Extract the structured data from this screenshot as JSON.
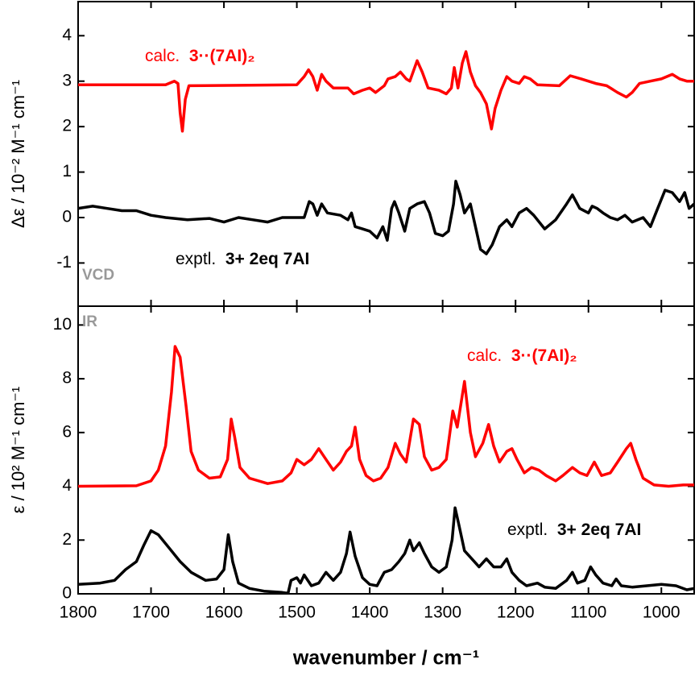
{
  "chart_data": [
    {
      "type": "line",
      "y_label": "Δε / 10⁻² M⁻¹ cm⁻¹",
      "xlim": [
        1800,
        955
      ],
      "ylim": [
        -1.95,
        4.75
      ],
      "yticks": [
        -1,
        0,
        1,
        2,
        3,
        4
      ],
      "annotations": [
        {
          "text": "calc.",
          "bold_text": "3··(7AI)₂",
          "color": "#ff0000"
        },
        {
          "text": "exptl.",
          "bold_text": "3+ 2eq 7AI",
          "color": "#000000"
        },
        {
          "bold_text": "VCD",
          "color": "#999999"
        }
      ],
      "series": [
        {
          "name": "calc. VCD",
          "color": "#ff0000",
          "x": [
            1800,
            1680,
            1668,
            1663,
            1660,
            1657,
            1653,
            1648,
            1500,
            1490,
            1484,
            1478,
            1472,
            1466,
            1460,
            1450,
            1430,
            1422,
            1410,
            1400,
            1392,
            1380,
            1375,
            1365,
            1358,
            1350,
            1345,
            1335,
            1328,
            1320,
            1305,
            1295,
            1288,
            1284,
            1279,
            1273,
            1268,
            1262,
            1255,
            1248,
            1240,
            1233,
            1228,
            1220,
            1212,
            1205,
            1195,
            1188,
            1180,
            1170,
            1140,
            1125,
            1110,
            1090,
            1075,
            1060,
            1048,
            1040,
            1030,
            1015,
            1000,
            985,
            975,
            965,
            955
          ],
          "values": [
            2.92,
            2.92,
            3.0,
            2.95,
            2.3,
            1.9,
            2.6,
            2.9,
            2.92,
            3.1,
            3.25,
            3.1,
            2.8,
            3.15,
            3.0,
            2.85,
            2.85,
            2.72,
            2.8,
            2.85,
            2.75,
            2.9,
            3.05,
            3.1,
            3.2,
            3.05,
            3.0,
            3.45,
            3.2,
            2.85,
            2.8,
            2.72,
            2.85,
            3.3,
            2.85,
            3.4,
            3.65,
            3.2,
            2.9,
            2.75,
            2.5,
            1.95,
            2.4,
            2.8,
            3.1,
            3.0,
            2.95,
            3.1,
            3.05,
            2.92,
            2.9,
            3.12,
            3.05,
            2.95,
            2.9,
            2.75,
            2.65,
            2.75,
            2.95,
            3.0,
            3.05,
            3.15,
            3.05,
            3.0,
            3.0
          ]
        },
        {
          "name": "exptl. VCD",
          "color": "#000000",
          "x": [
            1800,
            1780,
            1760,
            1740,
            1720,
            1700,
            1680,
            1650,
            1620,
            1600,
            1580,
            1560,
            1540,
            1520,
            1500,
            1490,
            1483,
            1478,
            1472,
            1466,
            1458,
            1440,
            1430,
            1425,
            1420,
            1410,
            1400,
            1390,
            1382,
            1376,
            1370,
            1366,
            1360,
            1352,
            1345,
            1335,
            1325,
            1318,
            1310,
            1300,
            1292,
            1285,
            1282,
            1276,
            1270,
            1262,
            1255,
            1248,
            1240,
            1232,
            1222,
            1212,
            1205,
            1195,
            1185,
            1175,
            1160,
            1145,
            1130,
            1122,
            1112,
            1100,
            1095,
            1088,
            1080,
            1070,
            1060,
            1050,
            1040,
            1025,
            1015,
            1005,
            995,
            985,
            975,
            968,
            962,
            955
          ],
          "values": [
            0.2,
            0.25,
            0.2,
            0.15,
            0.15,
            0.05,
            0.0,
            -0.05,
            -0.02,
            -0.1,
            0.0,
            -0.05,
            -0.1,
            0.0,
            0.0,
            0.0,
            0.35,
            0.3,
            0.05,
            0.3,
            0.1,
            0.05,
            -0.05,
            0.1,
            -0.2,
            -0.25,
            -0.3,
            -0.45,
            -0.2,
            -0.5,
            0.2,
            0.35,
            0.1,
            -0.3,
            0.2,
            0.3,
            0.35,
            0.1,
            -0.35,
            -0.4,
            -0.3,
            0.3,
            0.8,
            0.5,
            0.1,
            0.3,
            -0.2,
            -0.7,
            -0.8,
            -0.6,
            -0.2,
            -0.05,
            -0.2,
            0.1,
            0.2,
            0.05,
            -0.25,
            -0.05,
            0.3,
            0.5,
            0.2,
            0.1,
            0.25,
            0.2,
            0.1,
            0.0,
            -0.05,
            0.05,
            -0.1,
            0.0,
            -0.2,
            0.2,
            0.6,
            0.55,
            0.35,
            0.55,
            0.2,
            0.3
          ]
        }
      ]
    },
    {
      "type": "line",
      "y_label": "ε / 10² M⁻¹ cm⁻¹",
      "x_label": "wavenumber / cm⁻¹",
      "xlim": [
        1800,
        955
      ],
      "xticks": [
        1800,
        1700,
        1600,
        1500,
        1400,
        1300,
        1200,
        1100,
        1000
      ],
      "ylim": [
        0,
        10.7
      ],
      "yticks": [
        0,
        2,
        4,
        6,
        8,
        10
      ],
      "annotations": [
        {
          "bold_text": "IR",
          "color": "#999999"
        },
        {
          "text": "calc.",
          "bold_text": "3··(7AI)₂",
          "color": "#ff0000"
        },
        {
          "text": "exptl.",
          "bold_text": "3+ 2eq 7AI",
          "color": "#000000"
        }
      ],
      "series": [
        {
          "name": "calc. IR",
          "color": "#ff0000",
          "x": [
            1800,
            1720,
            1700,
            1690,
            1680,
            1672,
            1667,
            1660,
            1652,
            1645,
            1635,
            1620,
            1605,
            1595,
            1590,
            1585,
            1578,
            1565,
            1540,
            1520,
            1508,
            1500,
            1490,
            1480,
            1470,
            1460,
            1450,
            1440,
            1432,
            1425,
            1420,
            1414,
            1405,
            1395,
            1385,
            1375,
            1365,
            1358,
            1350,
            1340,
            1332,
            1325,
            1315,
            1305,
            1295,
            1286,
            1280,
            1270,
            1262,
            1255,
            1245,
            1237,
            1230,
            1222,
            1212,
            1205,
            1198,
            1188,
            1178,
            1168,
            1158,
            1145,
            1135,
            1122,
            1112,
            1102,
            1092,
            1082,
            1070,
            1060,
            1048,
            1042,
            1035,
            1025,
            1010,
            990,
            970,
            955
          ],
          "values": [
            4.0,
            4.02,
            4.2,
            4.6,
            5.5,
            7.5,
            9.2,
            8.8,
            7.0,
            5.3,
            4.6,
            4.3,
            4.35,
            5.0,
            6.5,
            5.8,
            4.7,
            4.3,
            4.1,
            4.2,
            4.5,
            5.0,
            4.8,
            5.0,
            5.4,
            5.0,
            4.6,
            4.9,
            5.3,
            5.5,
            6.2,
            5.0,
            4.4,
            4.2,
            4.3,
            4.7,
            5.6,
            5.2,
            4.9,
            6.5,
            6.3,
            5.1,
            4.6,
            4.7,
            5.0,
            6.8,
            6.2,
            7.9,
            6.0,
            5.1,
            5.6,
            6.3,
            5.5,
            4.9,
            5.3,
            5.4,
            5.0,
            4.5,
            4.7,
            4.6,
            4.4,
            4.2,
            4.4,
            4.7,
            4.5,
            4.4,
            4.9,
            4.4,
            4.5,
            4.9,
            5.4,
            5.6,
            5.0,
            4.3,
            4.05,
            4.0,
            4.05,
            4.05
          ]
        },
        {
          "name": "exptl. IR",
          "color": "#000000",
          "x": [
            1800,
            1770,
            1750,
            1735,
            1720,
            1710,
            1700,
            1690,
            1675,
            1660,
            1645,
            1625,
            1610,
            1600,
            1594,
            1588,
            1580,
            1565,
            1545,
            1520,
            1512,
            1508,
            1500,
            1495,
            1490,
            1480,
            1470,
            1460,
            1450,
            1440,
            1432,
            1427,
            1420,
            1410,
            1400,
            1390,
            1380,
            1370,
            1360,
            1352,
            1345,
            1340,
            1332,
            1325,
            1315,
            1305,
            1295,
            1287,
            1283,
            1278,
            1270,
            1260,
            1250,
            1240,
            1230,
            1220,
            1212,
            1205,
            1195,
            1185,
            1170,
            1160,
            1145,
            1130,
            1122,
            1115,
            1105,
            1097,
            1090,
            1080,
            1068,
            1062,
            1055,
            1040,
            1020,
            1000,
            980,
            965,
            955
          ],
          "values": [
            0.35,
            0.4,
            0.5,
            0.9,
            1.2,
            1.8,
            2.35,
            2.2,
            1.7,
            1.2,
            0.8,
            0.5,
            0.55,
            0.9,
            2.2,
            1.2,
            0.4,
            0.2,
            0.1,
            0.05,
            0.02,
            0.5,
            0.6,
            0.4,
            0.7,
            0.3,
            0.4,
            0.8,
            0.5,
            0.8,
            1.5,
            2.3,
            1.4,
            0.6,
            0.35,
            0.3,
            0.8,
            0.9,
            1.2,
            1.5,
            2.0,
            1.6,
            1.9,
            1.5,
            1.0,
            0.8,
            1.0,
            2.0,
            3.2,
            2.6,
            1.6,
            1.3,
            1.0,
            1.3,
            1.0,
            1.0,
            1.3,
            0.8,
            0.5,
            0.3,
            0.4,
            0.25,
            0.2,
            0.5,
            0.8,
            0.4,
            0.5,
            1.0,
            0.7,
            0.4,
            0.3,
            0.55,
            0.3,
            0.25,
            0.3,
            0.35,
            0.3,
            0.15,
            0.2
          ]
        }
      ]
    }
  ]
}
